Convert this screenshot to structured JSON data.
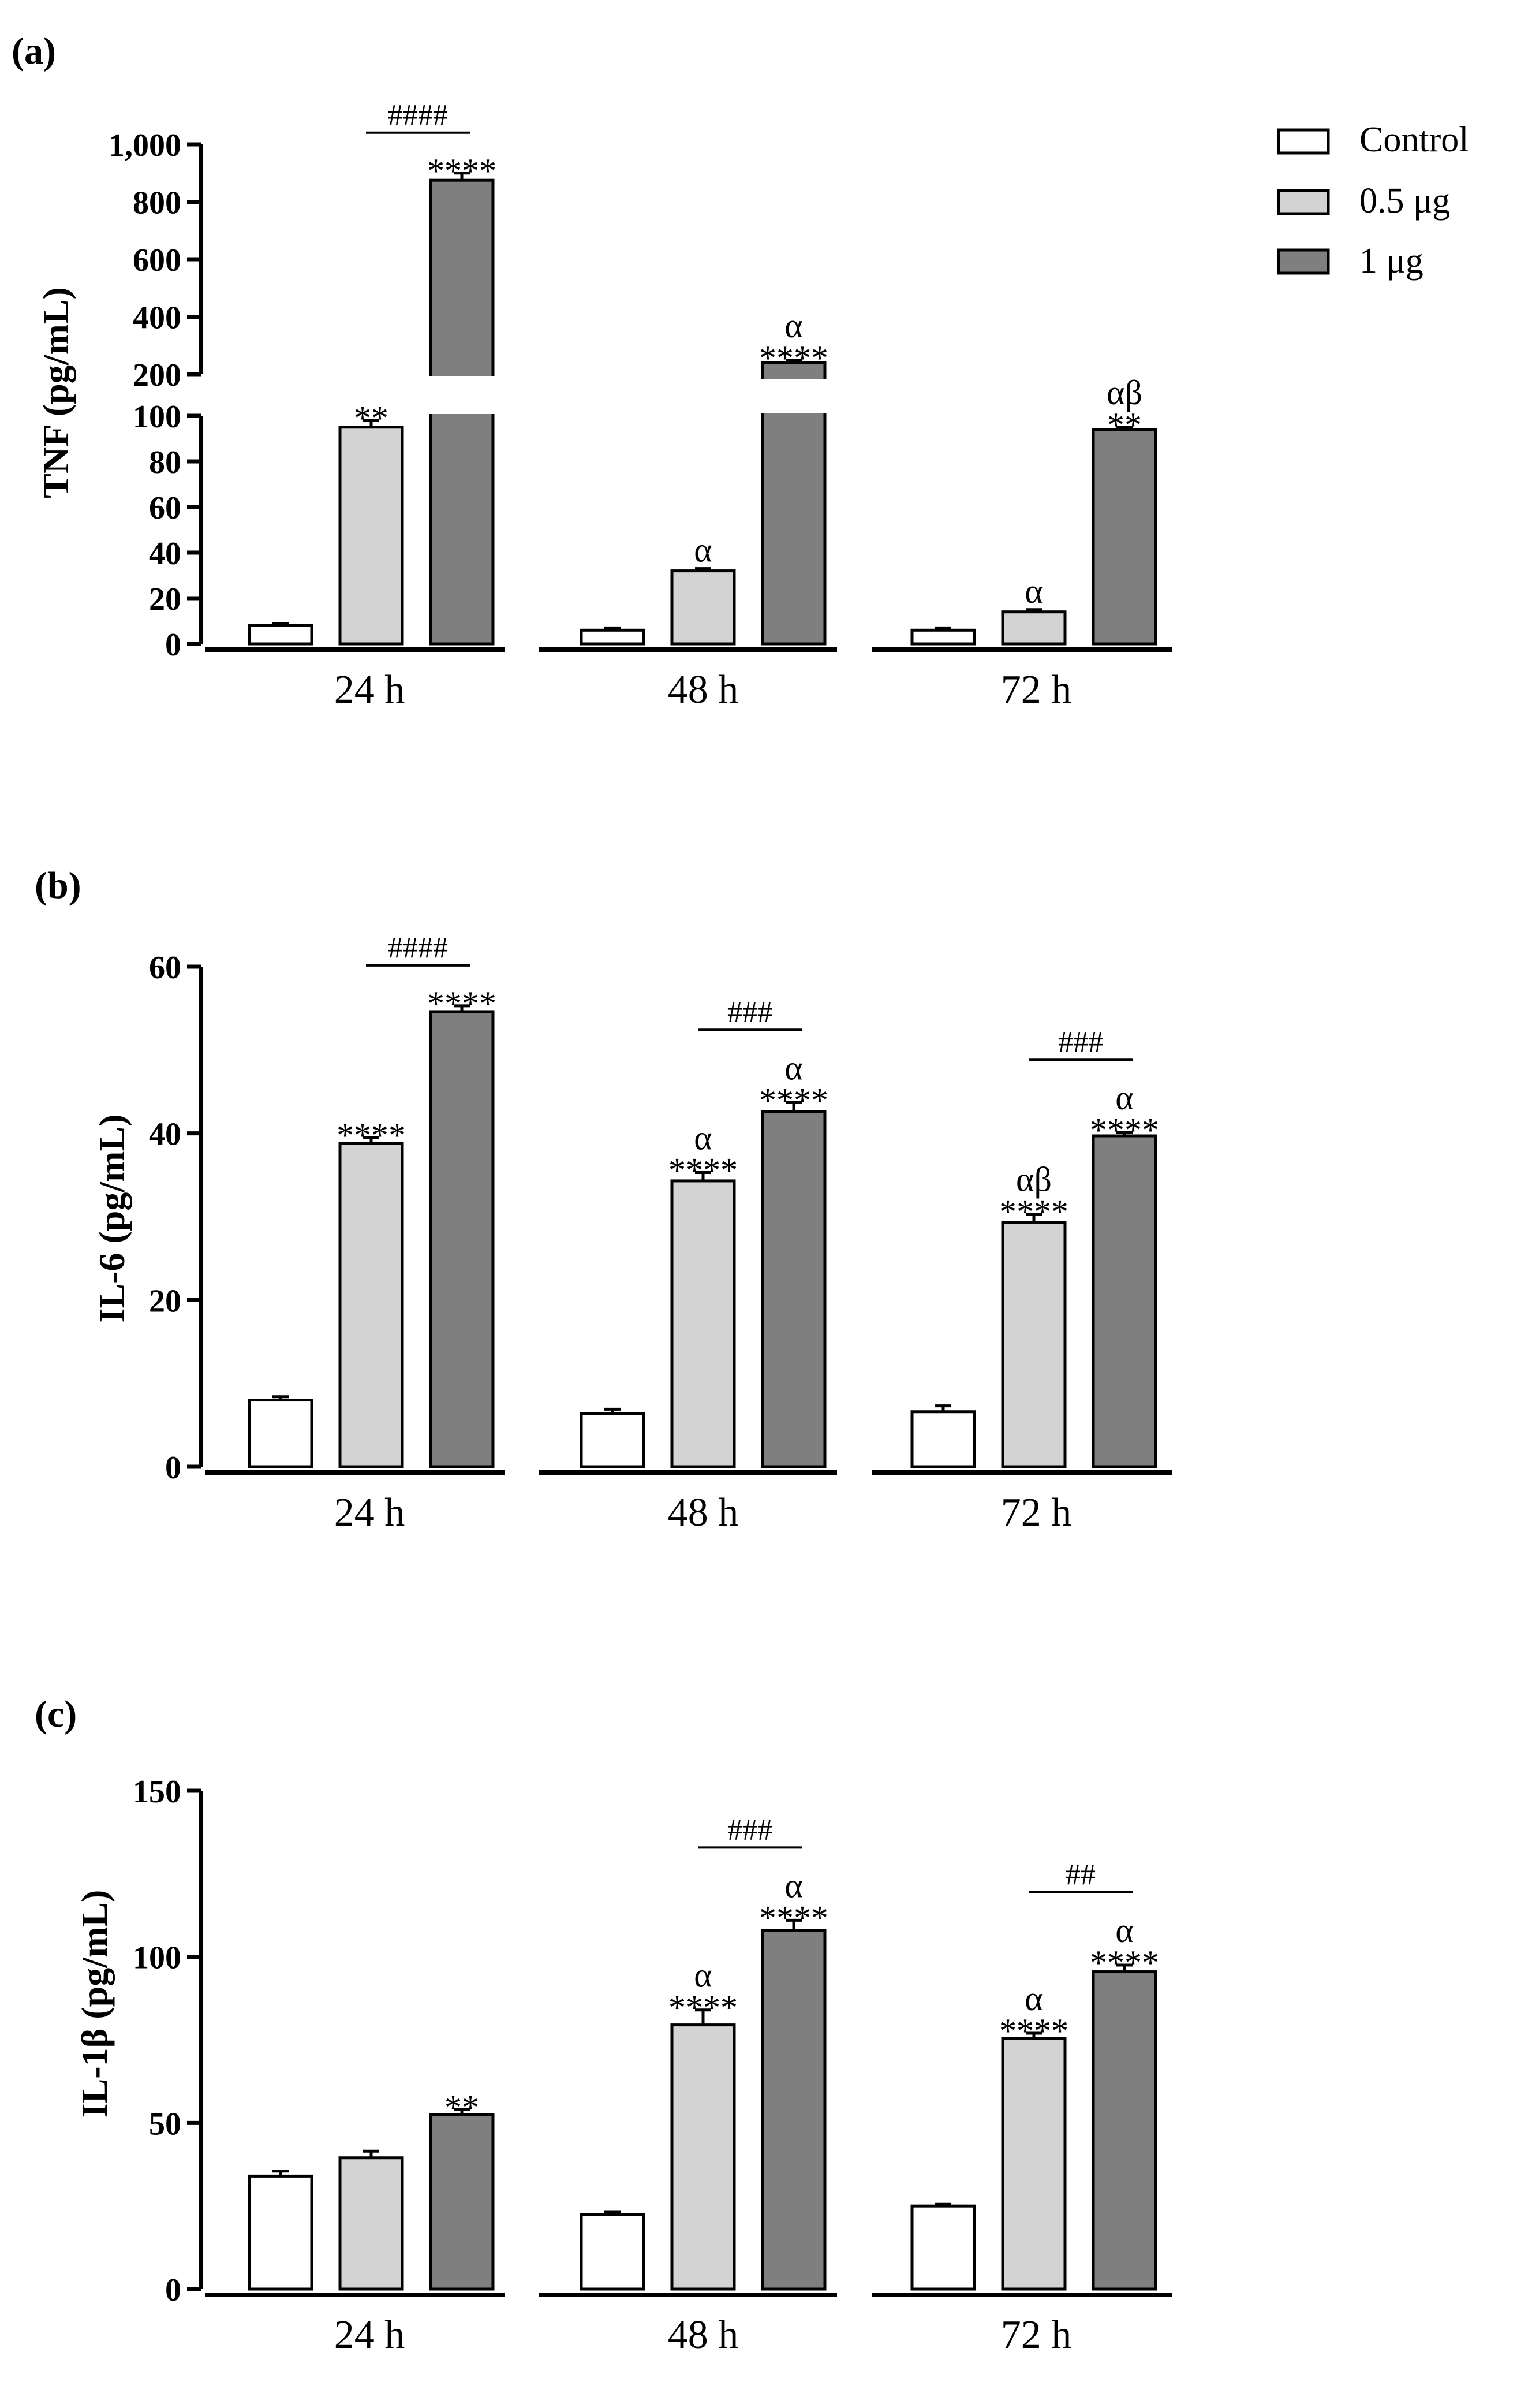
{
  "legend": {
    "items": [
      {
        "label": "Control",
        "fill": "#ffffff"
      },
      {
        "label": "0.5 μg",
        "fill": "#d3d3d3"
      },
      {
        "label": "1 μg",
        "fill": "#7f7f7f"
      }
    ]
  },
  "colors": {
    "control": "#ffffff",
    "low": "#d3d3d3",
    "high": "#7f7f7f",
    "stroke": "#000000"
  },
  "chart_data": [
    {
      "type": "bar",
      "panel_label": "(a)",
      "ylabel": "TNF (pg/mL)",
      "categories": [
        "24 h",
        "48 h",
        "72 h"
      ],
      "axis_break": {
        "lower_range": [
          0,
          100
        ],
        "upper_range": [
          200,
          1000
        ]
      },
      "lower_ticks": [
        "0",
        "20",
        "40",
        "60",
        "80",
        "100"
      ],
      "upper_ticks": [
        "200",
        "400",
        "600",
        "800",
        "1,000"
      ],
      "series": [
        {
          "name": "Control",
          "values": [
            8,
            6,
            6
          ],
          "errors": [
            1,
            1,
            1
          ],
          "annotations": [
            "",
            "",
            ""
          ]
        },
        {
          "name": "0.5 μg",
          "values": [
            95,
            32,
            14
          ],
          "errors": [
            3,
            1,
            1
          ],
          "annotations": [
            "**",
            "α",
            "α"
          ]
        },
        {
          "name": "1 μg",
          "values": [
            875,
            240,
            94
          ],
          "errors": [
            25,
            8,
            1
          ],
          "annotations": [
            "****",
            "α\n****",
            "αβ\n**"
          ]
        }
      ],
      "comparisons": [
        "####",
        "",
        ""
      ]
    },
    {
      "type": "bar",
      "panel_label": "(b)",
      "ylabel": "IL-6 (pg/mL)",
      "categories": [
        "24 h",
        "48 h",
        "72 h"
      ],
      "ylim": [
        0,
        60
      ],
      "ticks": [
        "0",
        "20",
        "40",
        "60"
      ],
      "series": [
        {
          "name": "Control",
          "values": [
            8,
            6.4,
            6.6
          ],
          "errors": [
            0.4,
            0.5,
            0.7
          ],
          "annotations": [
            "",
            "",
            ""
          ]
        },
        {
          "name": "0.5 μg",
          "values": [
            38.8,
            34.3,
            29.3
          ],
          "errors": [
            0.7,
            1.0,
            1.0
          ],
          "annotations": [
            "****",
            "α\n****",
            "αβ\n****"
          ]
        },
        {
          "name": "1 μg",
          "values": [
            54.6,
            42.6,
            39.7
          ],
          "errors": [
            0.7,
            1.1,
            0.4
          ],
          "annotations": [
            "****",
            "α\n****",
            "α\n****"
          ]
        }
      ],
      "comparisons": [
        "####",
        "###",
        "###"
      ]
    },
    {
      "type": "bar",
      "panel_label": "(c)",
      "ylabel": "IL-1β (pg/mL)",
      "categories": [
        "24 h",
        "48 h",
        "72 h"
      ],
      "ylim": [
        0,
        150
      ],
      "ticks": [
        "0",
        "50",
        "100",
        "150"
      ],
      "series": [
        {
          "name": "Control",
          "values": [
            34,
            22.5,
            25
          ],
          "errors": [
            1.5,
            0.8,
            0.5
          ],
          "annotations": [
            "",
            "",
            ""
          ]
        },
        {
          "name": "0.5 μg",
          "values": [
            39.5,
            79.5,
            75.5
          ],
          "errors": [
            2.0,
            4.5,
            1.5
          ],
          "annotations": [
            "",
            "α\n****",
            "α\n****"
          ]
        },
        {
          "name": "1 μg",
          "values": [
            52.5,
            108,
            95.5
          ],
          "errors": [
            1.5,
            3.0,
            2.0
          ],
          "annotations": [
            "**",
            "α\n****",
            "α\n****"
          ]
        }
      ],
      "comparisons": [
        "",
        "###",
        "##"
      ]
    }
  ]
}
